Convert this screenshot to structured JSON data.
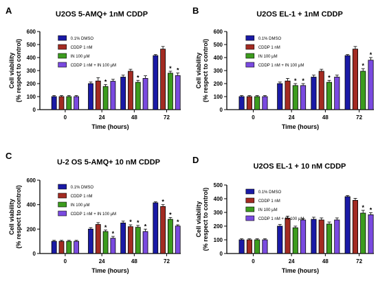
{
  "colors": {
    "DMSO": "#1a1aa6",
    "CDDP": "#a32b22",
    "IN": "#3c9c1e",
    "COMBO": "#7a4ae0"
  },
  "legend": [
    "0.1%  DMSO",
    "CDDP 1 nM",
    "IN 100 μM",
    "CDDP 1 nM + IN 100 μM"
  ],
  "legend_10": [
    "0.1%  DMSO",
    "CDDP 1 nM",
    "IN 100 μM",
    "CDDP 1 nM + IN 100 μM"
  ],
  "chart_data": [
    {
      "panel": "A",
      "type": "bar",
      "title": "U2OS 5-AMQ+ 1nM CDDP",
      "xlabel": "Time (hours)",
      "ylabel": "Cell viability\n(% respect to control)",
      "categories": [
        "0",
        "24",
        "48",
        "72"
      ],
      "ylim": [
        0,
        600
      ],
      "yticks": [
        0,
        100,
        200,
        300,
        400,
        500,
        600
      ],
      "series": [
        {
          "name": "0.1%  DMSO",
          "values": [
            100,
            200,
            250,
            415
          ],
          "err": [
            8,
            12,
            15,
            8
          ]
        },
        {
          "name": "CDDP 1 nM",
          "values": [
            100,
            220,
            295,
            465
          ],
          "err": [
            8,
            25,
            15,
            20
          ]
        },
        {
          "name": "IN 100 μM",
          "values": [
            100,
            178,
            210,
            280
          ],
          "err": [
            8,
            15,
            15,
            15
          ]
        },
        {
          "name": "CDDP 1 nM + IN 100 μM",
          "values": [
            100,
            218,
            240,
            262
          ],
          "err": [
            8,
            15,
            20,
            20
          ]
        }
      ],
      "stars": [
        [
          2,
          1
        ],
        [
          2,
          2
        ],
        [
          2,
          3
        ],
        [
          3,
          3
        ]
      ]
    },
    {
      "panel": "B",
      "type": "bar",
      "title": "U2OS EL-1 + 1nM CDDP",
      "xlabel": "Time (hours)",
      "ylabel": "Cell viability\n(% respect to control)",
      "categories": [
        "0",
        "24",
        "48",
        "72"
      ],
      "ylim": [
        0,
        600
      ],
      "yticks": [
        0,
        100,
        200,
        300,
        400,
        500,
        600
      ],
      "series": [
        {
          "name": "0.1%  DMSO",
          "values": [
            100,
            200,
            250,
            415
          ],
          "err": [
            8,
            12,
            15,
            8
          ]
        },
        {
          "name": "CDDP 1 nM",
          "values": [
            100,
            220,
            295,
            465
          ],
          "err": [
            8,
            20,
            15,
            20
          ]
        },
        {
          "name": "IN 100 μM",
          "values": [
            100,
            185,
            210,
            295
          ],
          "err": [
            8,
            15,
            15,
            20
          ]
        },
        {
          "name": "CDDP 1 nM + IN 100 μM",
          "values": [
            100,
            185,
            250,
            380
          ],
          "err": [
            8,
            15,
            15,
            20
          ]
        }
      ],
      "stars": [
        [
          2,
          1
        ],
        [
          3,
          1
        ],
        [
          2,
          2
        ],
        [
          2,
          3
        ],
        [
          3,
          3
        ]
      ]
    },
    {
      "panel": "C",
      "type": "bar",
      "title": "U-2 OS 5-AMQ+ 10 nM CDDP",
      "xlabel": "Time (hours)",
      "ylabel": "Cell viability\n(% respect to control)",
      "categories": [
        "0",
        "24",
        "48",
        "72"
      ],
      "ylim": [
        0,
        600
      ],
      "yticks": [
        0,
        200,
        400,
        600
      ],
      "series": [
        {
          "name": "0.1%  DMSO",
          "values": [
            100,
            200,
            250,
            415
          ],
          "err": [
            8,
            12,
            15,
            8
          ]
        },
        {
          "name": "CDDP 1 nM",
          "values": [
            100,
            238,
            220,
            385
          ],
          "err": [
            8,
            15,
            15,
            15
          ]
        },
        {
          "name": "IN 100 μM",
          "values": [
            100,
            180,
            215,
            280
          ],
          "err": [
            8,
            12,
            15,
            15
          ]
        },
        {
          "name": "CDDP 1 nM + IN 100 μM",
          "values": [
            100,
            125,
            180,
            225
          ],
          "err": [
            8,
            15,
            20,
            10
          ]
        }
      ],
      "stars": [
        [
          2,
          1
        ],
        [
          3,
          1
        ],
        [
          1,
          2
        ],
        [
          2,
          2
        ],
        [
          3,
          2
        ],
        [
          1,
          3
        ],
        [
          2,
          3
        ],
        [
          3,
          3
        ]
      ]
    },
    {
      "panel": "D",
      "type": "bar",
      "title": "U2OS EL-1 + 10 nM CDDP",
      "xlabel": "Time (hours)",
      "ylabel": "Cell viability\n(% respect to control)",
      "categories": [
        "0",
        "24",
        "48",
        "72"
      ],
      "ylim": [
        0,
        500
      ],
      "yticks": [
        0,
        100,
        200,
        300,
        400,
        500
      ],
      "series": [
        {
          "name": "0.1%  DMSO",
          "values": [
            100,
            200,
            250,
            415
          ],
          "err": [
            8,
            12,
            15,
            8
          ]
        },
        {
          "name": "CDDP 1 nM",
          "values": [
            100,
            258,
            245,
            388
          ],
          "err": [
            8,
            15,
            15,
            15
          ]
        },
        {
          "name": "IN 100 μM",
          "values": [
            100,
            188,
            215,
            295
          ],
          "err": [
            8,
            12,
            15,
            20
          ]
        },
        {
          "name": "CDDP 1 nM + IN 100 μM",
          "values": [
            100,
            245,
            245,
            283
          ],
          "err": [
            8,
            10,
            15,
            15
          ]
        }
      ],
      "stars": [
        [
          2,
          3
        ],
        [
          3,
          3
        ]
      ]
    }
  ]
}
